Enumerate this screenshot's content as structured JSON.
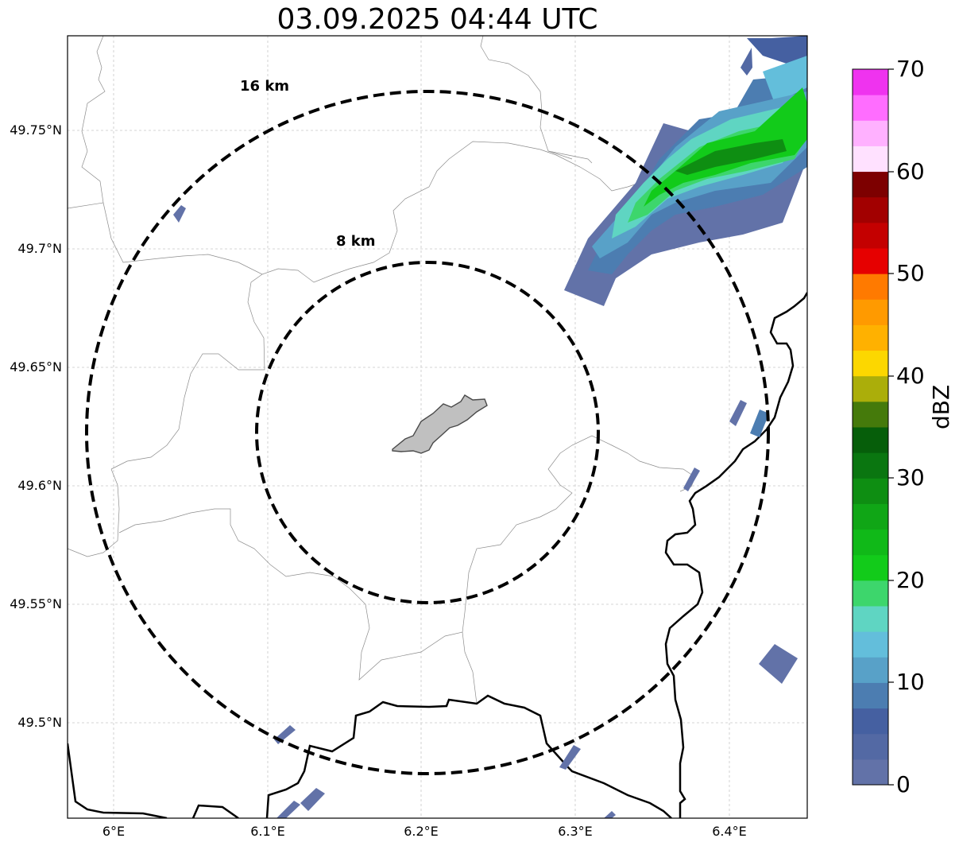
{
  "title": "03.09.2025 04:44 UTC",
  "map": {
    "lon_range": [
      5.97,
      6.45
    ],
    "lat_range": [
      49.46,
      49.79
    ],
    "gridlines": true,
    "x_ticks": [
      "6°E",
      "6.1°E",
      "6.2°E",
      "6.3°E",
      "6.4°E"
    ],
    "y_ticks": [
      "49.75°N",
      "49.7°N",
      "49.65°N",
      "49.6°N",
      "49.55°N",
      "49.5°N"
    ],
    "range_rings": [
      {
        "label": "8 km",
        "radius_km": 8
      },
      {
        "label": "16 km",
        "radius_km": 16
      }
    ],
    "rings_center": {
      "lon": 6.202,
      "lat": 49.623
    },
    "shaded_city": "grey polygon at center",
    "precipitation_band": "northeast, 10-25 dBZ",
    "colors": {
      "ring": "#000000",
      "city_fill": "#c0c0c0",
      "border": "#000000",
      "boundary": "#8c8c8c"
    }
  },
  "colorbar": {
    "label": "dBZ",
    "ticks": [
      "0",
      "10",
      "20",
      "30",
      "40",
      "50",
      "60",
      "70"
    ],
    "colors": [
      "#6272a8",
      "#5369a4",
      "#4560a1",
      "#4c7db1",
      "#58a1c8",
      "#63bedb",
      "#5fd5c2",
      "#3dd66c",
      "#12cb1a",
      "#10b918",
      "#10a616",
      "#0e8e12",
      "#0a7610",
      "#065e0a",
      "#457a0b",
      "#abae0a",
      "#fcd700",
      "#ffb100",
      "#ff9a00",
      "#ff7a00",
      "#e60000",
      "#c40000",
      "#a20000",
      "#7d0000",
      "#ffe1ff",
      "#ffb1ff",
      "#ff6dff",
      "#ef33ef"
    ]
  }
}
